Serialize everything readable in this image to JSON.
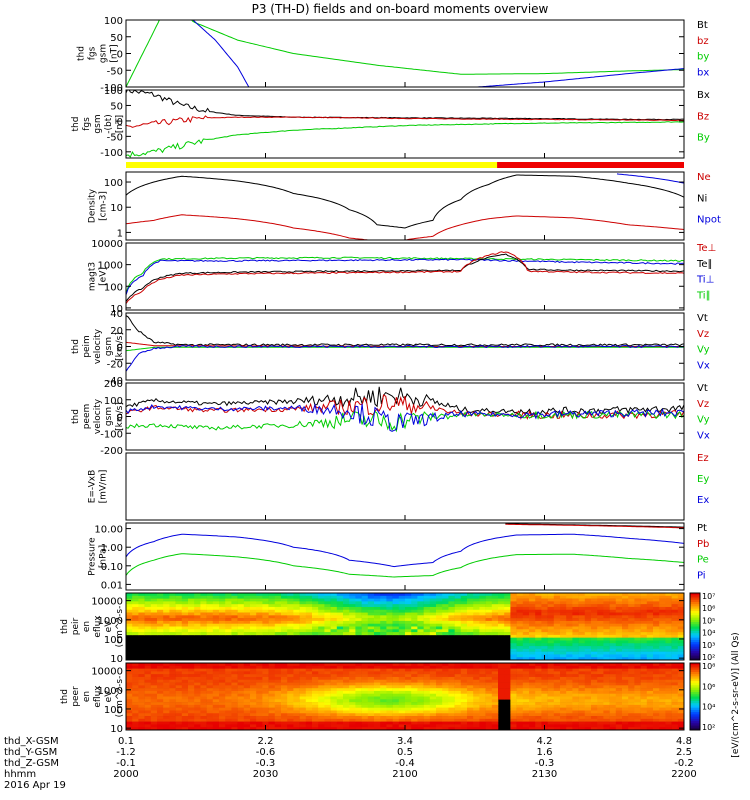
{
  "title": "P3 (TH-D) fields and on-board moments overview",
  "colors": {
    "black": "#000000",
    "red": "#cc0000",
    "green": "#00cc00",
    "blue": "#0000dd",
    "yellow": "#ffff00",
    "barRed": "#ee0000"
  },
  "chart_data": [
    {
      "type": "line",
      "id": "fgs",
      "ylabel_lines": [
        "thd",
        "fgs",
        "gsm",
        "[nT]"
      ],
      "yticks": [
        100,
        50,
        0,
        -50,
        -100
      ],
      "ylim": [
        -100,
        100
      ],
      "legend": [
        {
          "label": "Bt",
          "color": "#000000"
        },
        {
          "label": "bz",
          "color": "#cc0000"
        },
        {
          "label": "by",
          "color": "#00cc00"
        },
        {
          "label": "bx",
          "color": "#0000dd"
        }
      ],
      "series": [
        {
          "name": "by",
          "color": "#00cc00",
          "x": [
            0,
            0.06,
            0.08,
            0.12,
            0.2,
            0.3,
            0.45,
            0.6,
            0.75,
            0.9,
            1.0
          ],
          "y": [
            -100,
            100,
            180,
            95,
            40,
            0,
            -35,
            -62,
            -60,
            -52,
            -48
          ]
        },
        {
          "name": "bx",
          "color": "#0000dd",
          "x": [
            0.12,
            0.16,
            0.2,
            0.22
          ],
          "y": [
            100,
            40,
            -40,
            -100
          ]
        },
        {
          "name": "bx",
          "color": "#0000dd",
          "x": [
            0.63,
            0.75,
            0.9,
            1.0
          ],
          "y": [
            -100,
            -85,
            -60,
            -45
          ]
        }
      ]
    },
    {
      "type": "line",
      "id": "fgs-detrended",
      "ylabel_lines": [
        "thd",
        "fgs",
        "gsm",
        "-(bt)",
        "[nT]"
      ],
      "yticks": [
        100,
        50,
        0,
        -50,
        -100
      ],
      "ylim": [
        -120,
        100
      ],
      "legend": [
        {
          "label": "Bx",
          "color": "#000000"
        },
        {
          "label": "Bz",
          "color": "#cc0000"
        },
        {
          "label": "By",
          "color": "#00cc00"
        }
      ],
      "series": [
        {
          "name": "Bx",
          "color": "#000000",
          "x": [
            0,
            0.05,
            0.1,
            0.15,
            0.2,
            0.3,
            0.5,
            0.7,
            0.9,
            1.0
          ],
          "y": [
            100,
            85,
            50,
            30,
            18,
            12,
            10,
            8,
            5,
            5
          ]
        },
        {
          "name": "Bz",
          "color": "#cc0000",
          "x": [
            0,
            0.05,
            0.1,
            0.15,
            0.2,
            0.3,
            0.5,
            0.7,
            0.9,
            1.0
          ],
          "y": [
            -20,
            -10,
            2,
            10,
            12,
            12,
            8,
            5,
            3,
            2
          ]
        },
        {
          "name": "By",
          "color": "#00cc00",
          "x": [
            0,
            0.05,
            0.1,
            0.15,
            0.2,
            0.3,
            0.5,
            0.7,
            0.9,
            1.0
          ],
          "y": [
            -110,
            -100,
            -80,
            -60,
            -45,
            -30,
            -15,
            -8,
            -5,
            -3
          ]
        }
      ]
    },
    {
      "type": "line",
      "id": "density",
      "yscale": "log",
      "ylabel_lines": [
        "Density",
        "[cm-3]"
      ],
      "yticks": [
        100,
        10,
        1
      ],
      "ylim": [
        0.5,
        250
      ],
      "legend": [
        {
          "label": "Ne",
          "color": "#cc0000"
        },
        {
          "label": "Ni",
          "color": "#000000"
        },
        {
          "label": "Npot",
          "color": "#0000dd"
        }
      ],
      "series": [
        {
          "name": "Ni",
          "color": "#000000",
          "x": [
            0,
            0.05,
            0.1,
            0.2,
            0.3,
            0.4,
            0.45,
            0.5,
            0.55,
            0.6,
            0.65,
            0.7,
            0.8,
            0.9,
            1.0
          ],
          "y": [
            30,
            100,
            170,
            110,
            35,
            8,
            2,
            1.5,
            3,
            20,
            80,
            190,
            170,
            90,
            25
          ]
        },
        {
          "name": "Ne",
          "color": "#cc0000",
          "x": [
            0,
            0.05,
            0.1,
            0.2,
            0.3,
            0.4,
            0.45,
            0.5,
            0.55,
            0.6,
            0.65,
            0.7,
            0.8,
            0.9,
            1.0
          ],
          "y": [
            2.2,
            3,
            5,
            3.5,
            1.5,
            0.6,
            0.45,
            0.5,
            0.7,
            2,
            3.5,
            4.5,
            3.8,
            2,
            1.3
          ]
        },
        {
          "name": "Npot",
          "color": "#0000dd",
          "x": [
            0.88,
            0.95,
            1.0
          ],
          "y": [
            210,
            140,
            90
          ]
        }
      ]
    },
    {
      "type": "line",
      "id": "temperature",
      "yscale": "log",
      "ylabel_lines": [
        "magt3",
        "[eV]"
      ],
      "yticks": [
        10000,
        1000,
        100,
        10
      ],
      "ylim": [
        8,
        10000
      ],
      "legend": [
        {
          "label": "Te⊥",
          "color": "#cc0000"
        },
        {
          "label": "Te∥",
          "color": "#000000"
        },
        {
          "label": "Ti⊥",
          "color": "#0000dd"
        },
        {
          "label": "Ti∥",
          "color": "#00cc00"
        }
      ],
      "series": [
        {
          "name": "Ti∥",
          "color": "#00cc00",
          "x": [
            0,
            0.03,
            0.06,
            0.2,
            0.4,
            0.6,
            0.8,
            1.0
          ],
          "y": [
            50,
            400,
            1800,
            2000,
            2100,
            1900,
            1700,
            1500
          ]
        },
        {
          "name": "Ti⊥",
          "color": "#0000dd",
          "x": [
            0,
            0.03,
            0.06,
            0.2,
            0.4,
            0.6,
            0.8,
            1.0
          ],
          "y": [
            40,
            300,
            1500,
            1500,
            1600,
            1700,
            1300,
            1100
          ]
        },
        {
          "name": "Te∥",
          "color": "#000000",
          "x": [
            0,
            0.03,
            0.06,
            0.1,
            0.2,
            0.4,
            0.6,
            0.68,
            0.72,
            0.8,
            1.0
          ],
          "y": [
            20,
            80,
            250,
            400,
            450,
            500,
            550,
            3000,
            600,
            550,
            500
          ]
        },
        {
          "name": "Te⊥",
          "color": "#cc0000",
          "x": [
            0,
            0.03,
            0.06,
            0.1,
            0.2,
            0.4,
            0.6,
            0.68,
            0.72,
            0.8,
            1.0
          ],
          "y": [
            15,
            60,
            200,
            330,
            380,
            420,
            480,
            4000,
            500,
            450,
            400
          ]
        }
      ]
    },
    {
      "type": "line",
      "id": "peim-velocity",
      "ylabel_lines": [
        "thd",
        "peim",
        "velocity",
        "gsm",
        "[km/s]"
      ],
      "yticks": [
        40,
        20,
        0,
        -20,
        -40
      ],
      "ylim": [
        -40,
        40
      ],
      "legend": [
        {
          "label": "Vt",
          "color": "#000000"
        },
        {
          "label": "Vz",
          "color": "#cc0000"
        },
        {
          "label": "Vy",
          "color": "#00cc00"
        },
        {
          "label": "Vx",
          "color": "#0000dd"
        }
      ],
      "series": [
        {
          "name": "Vt",
          "color": "#000000",
          "x": [
            0,
            0.02,
            0.05,
            0.1,
            0.5,
            1.0
          ],
          "y": [
            38,
            20,
            5,
            2,
            2,
            2
          ]
        },
        {
          "name": "Vz",
          "color": "#cc0000",
          "x": [
            0,
            0.05,
            0.5,
            1.0
          ],
          "y": [
            5,
            1,
            0,
            0
          ]
        },
        {
          "name": "Vy",
          "color": "#00cc00",
          "x": [
            0,
            0.05,
            0.5,
            1.0
          ],
          "y": [
            -5,
            -1,
            -1,
            -1
          ]
        },
        {
          "name": "Vx",
          "color": "#0000dd",
          "x": [
            0,
            0.02,
            0.05,
            0.1,
            1.0
          ],
          "y": [
            -30,
            -10,
            -2,
            0,
            0
          ]
        }
      ]
    },
    {
      "type": "line",
      "id": "peem-velocity",
      "ylabel_lines": [
        "thd",
        "peem",
        "velocity",
        "gsm",
        "[km/s]"
      ],
      "yticks": [
        200,
        100,
        0,
        -100,
        -200
      ],
      "ylim": [
        -200,
        200
      ],
      "legend": [
        {
          "label": "Vt",
          "color": "#000000"
        },
        {
          "label": "Vz",
          "color": "#cc0000"
        },
        {
          "label": "Vy",
          "color": "#00cc00"
        },
        {
          "label": "Vx",
          "color": "#0000dd"
        }
      ],
      "series": [
        {
          "name": "Vt",
          "color": "#000000",
          "x": [
            0,
            0.05,
            0.15,
            0.3,
            0.4,
            0.48,
            0.55,
            0.6,
            0.7,
            0.8,
            0.9,
            1.0
          ],
          "y": [
            60,
            95,
            75,
            90,
            110,
            130,
            90,
            40,
            30,
            35,
            40,
            50
          ]
        },
        {
          "name": "Vz",
          "color": "#cc0000",
          "x": [
            0,
            0.05,
            0.15,
            0.3,
            0.4,
            0.48,
            0.55,
            0.6,
            0.7,
            0.8,
            0.9,
            1.0
          ],
          "y": [
            20,
            55,
            35,
            45,
            60,
            80,
            50,
            15,
            10,
            5,
            10,
            15
          ]
        },
        {
          "name": "Vy",
          "color": "#00cc00",
          "x": [
            0,
            0.05,
            0.15,
            0.3,
            0.4,
            0.48,
            0.55,
            0.6,
            0.7,
            0.8,
            0.9,
            1.0
          ],
          "y": [
            -60,
            -50,
            -70,
            -50,
            -20,
            -30,
            0,
            10,
            10,
            10,
            10,
            10
          ]
        },
        {
          "name": "Vx",
          "color": "#0000dd",
          "x": [
            0,
            0.05,
            0.15,
            0.3,
            0.4,
            0.48,
            0.55,
            0.6,
            0.7,
            0.8,
            0.9,
            1.0
          ],
          "y": [
            30,
            60,
            45,
            50,
            40,
            -40,
            -10,
            15,
            10,
            15,
            20,
            20
          ]
        }
      ]
    },
    {
      "type": "line",
      "id": "efield",
      "ylabel_lines": [
        "E=-VxB",
        "[mV/m]"
      ],
      "yticks": [],
      "ylim": [
        -1,
        1
      ],
      "legend": [
        {
          "label": "Ez",
          "color": "#cc0000"
        },
        {
          "label": "Ey",
          "color": "#00cc00"
        },
        {
          "label": "Ex",
          "color": "#0000dd"
        }
      ],
      "series": []
    },
    {
      "type": "line",
      "id": "pressure",
      "yscale": "log",
      "ylabel_lines": [
        "Pressure",
        "[nPa]"
      ],
      "yticks": [
        "10.00",
        "1.00",
        "0.10",
        "0.01"
      ],
      "ylim": [
        0.005,
        20
      ],
      "legend": [
        {
          "label": "Pt",
          "color": "#000000"
        },
        {
          "label": "Pb",
          "color": "#cc0000"
        },
        {
          "label": "Pe",
          "color": "#00cc00"
        },
        {
          "label": "Pi",
          "color": "#0000dd"
        }
      ],
      "series": [
        {
          "name": "Pi",
          "color": "#0000dd",
          "x": [
            0,
            0.05,
            0.1,
            0.2,
            0.3,
            0.4,
            0.48,
            0.55,
            0.6,
            0.7,
            0.8,
            0.9,
            1.0
          ],
          "y": [
            0.3,
            2,
            5,
            3.5,
            1,
            0.2,
            0.09,
            0.15,
            0.6,
            4.5,
            5,
            3,
            1.6
          ]
        },
        {
          "name": "Pe",
          "color": "#00cc00",
          "x": [
            0,
            0.05,
            0.1,
            0.2,
            0.3,
            0.4,
            0.48,
            0.55,
            0.6,
            0.7,
            0.8,
            0.9,
            1.0
          ],
          "y": [
            0.03,
            0.2,
            0.45,
            0.3,
            0.1,
            0.035,
            0.025,
            0.03,
            0.08,
            0.4,
            0.42,
            0.25,
            0.15
          ]
        },
        {
          "name": "Pt",
          "color": "#000000",
          "x": [
            0.68,
            0.8,
            0.9,
            1.0
          ],
          "y": [
            18,
            16,
            14,
            12
          ]
        },
        {
          "name": "Pb",
          "color": "#cc0000",
          "x": [
            0.68,
            0.8,
            0.9,
            1.0
          ],
          "y": [
            17,
            15,
            13,
            11
          ]
        }
      ]
    },
    {
      "type": "heatmap",
      "id": "peir-eflux",
      "yscale": "log",
      "ylabel_lines": [
        "thd",
        "peir",
        "en",
        "eflux",
        "eV",
        "(cm^2-s-",
        "sr-eV)"
      ],
      "yticks": [
        10000,
        1000,
        100,
        10
      ],
      "ylim": [
        8,
        25000
      ],
      "colorbar_ticks": [
        "10⁷",
        "10⁶",
        "10⁵",
        "10⁴",
        "10³",
        "10²"
      ]
    },
    {
      "type": "heatmap",
      "id": "peer-eflux",
      "yscale": "log",
      "ylabel_lines": [
        "thd",
        "peer",
        "en",
        "eflux",
        "eV",
        "(cm^2-s-",
        "sr-eV)"
      ],
      "yticks": [
        10000,
        1000,
        100,
        10
      ],
      "ylim": [
        8,
        25000
      ],
      "colorbar_ticks": [
        "10⁸",
        "10⁶",
        "10⁴",
        "10²"
      ]
    }
  ],
  "colorbar_label": "[eV/(cm^2-s-sr-eV)] (All Qs)",
  "mode_bar": [
    {
      "from": 0.0,
      "to": 0.665,
      "color": "#ffff00"
    },
    {
      "from": 0.665,
      "to": 1.0,
      "color": "#ee0000"
    }
  ],
  "x_axis": {
    "rows": [
      {
        "label": "thd_X-GSM",
        "values": [
          "0.1",
          "2.2",
          "3.4",
          "4.2",
          "4.8"
        ]
      },
      {
        "label": "thd_Y-GSM",
        "values": [
          "-1.2",
          "-0.6",
          "0.5",
          "1.6",
          "2.5"
        ]
      },
      {
        "label": "thd_Z-GSM",
        "values": [
          "-0.1",
          "-0.3",
          "-0.4",
          "-0.3",
          "-0.2"
        ]
      },
      {
        "label": "hhmm",
        "values": [
          "2000",
          "2030",
          "2100",
          "2130",
          "2200"
        ]
      }
    ],
    "date": "2016 Apr 19"
  }
}
